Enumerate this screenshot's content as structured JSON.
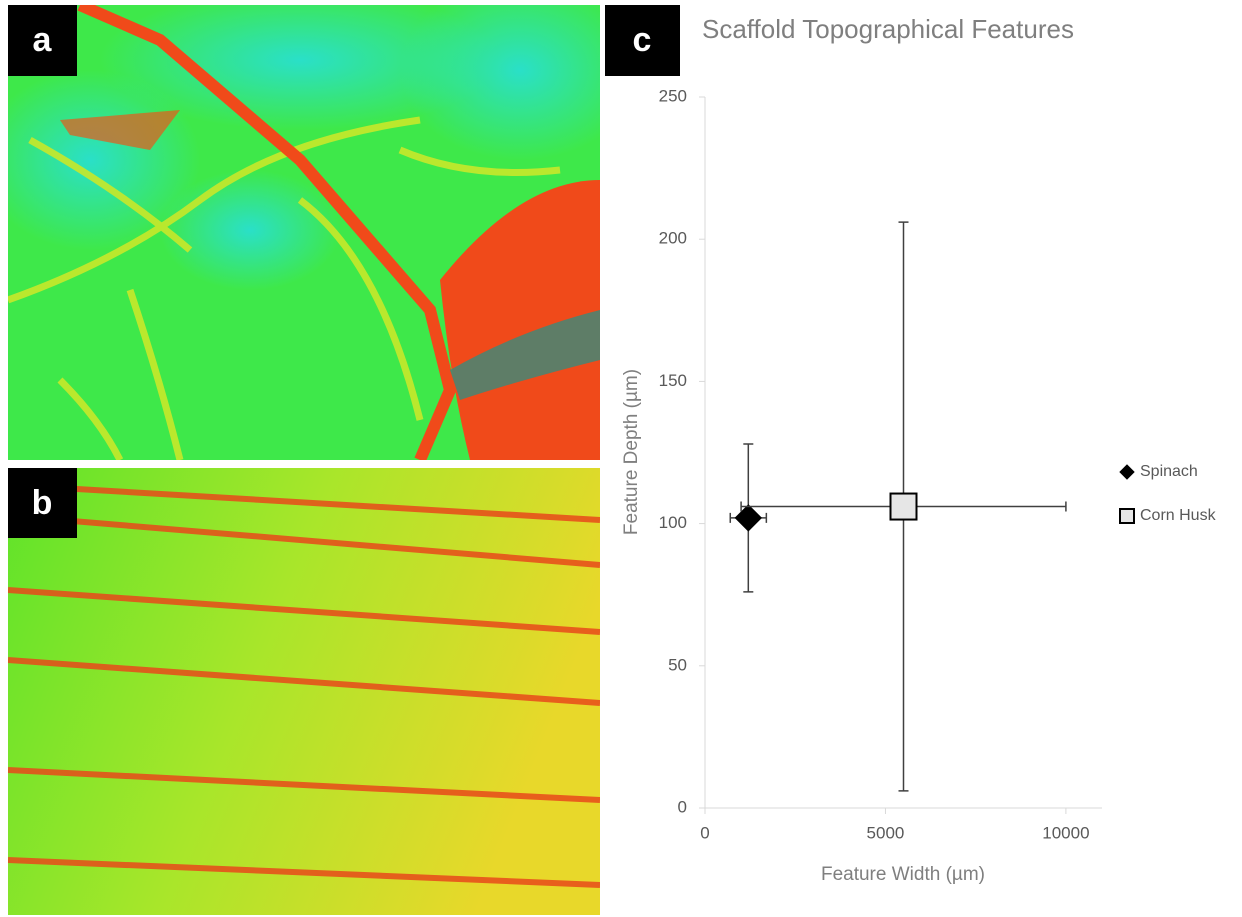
{
  "panel_labels": [
    "a",
    "b",
    "c"
  ],
  "chart_data": {
    "type": "scatter",
    "title": "Scaffold Topographical Features",
    "x_label": "Feature Width (µm)",
    "y_label": "Feature Depth (µm)",
    "xlim": [
      0,
      11000
    ],
    "xticks": [
      0,
      5000,
      10000
    ],
    "ylim": [
      0,
      250
    ],
    "yticks": [
      0,
      50,
      100,
      150,
      200,
      250
    ],
    "legend": "right",
    "series": [
      {
        "name": "Spinach",
        "marker": "diamond",
        "color": "#000000",
        "x": [
          1200
        ],
        "values": [
          102
        ],
        "xerr": [
          500
        ],
        "yerr": [
          26
        ]
      },
      {
        "name": "Corn Husk",
        "marker": "square",
        "color": "#e6e6e6",
        "x": [
          5500
        ],
        "values": [
          106
        ],
        "xerr": [
          4500
        ],
        "yerr": [
          100
        ]
      }
    ]
  }
}
